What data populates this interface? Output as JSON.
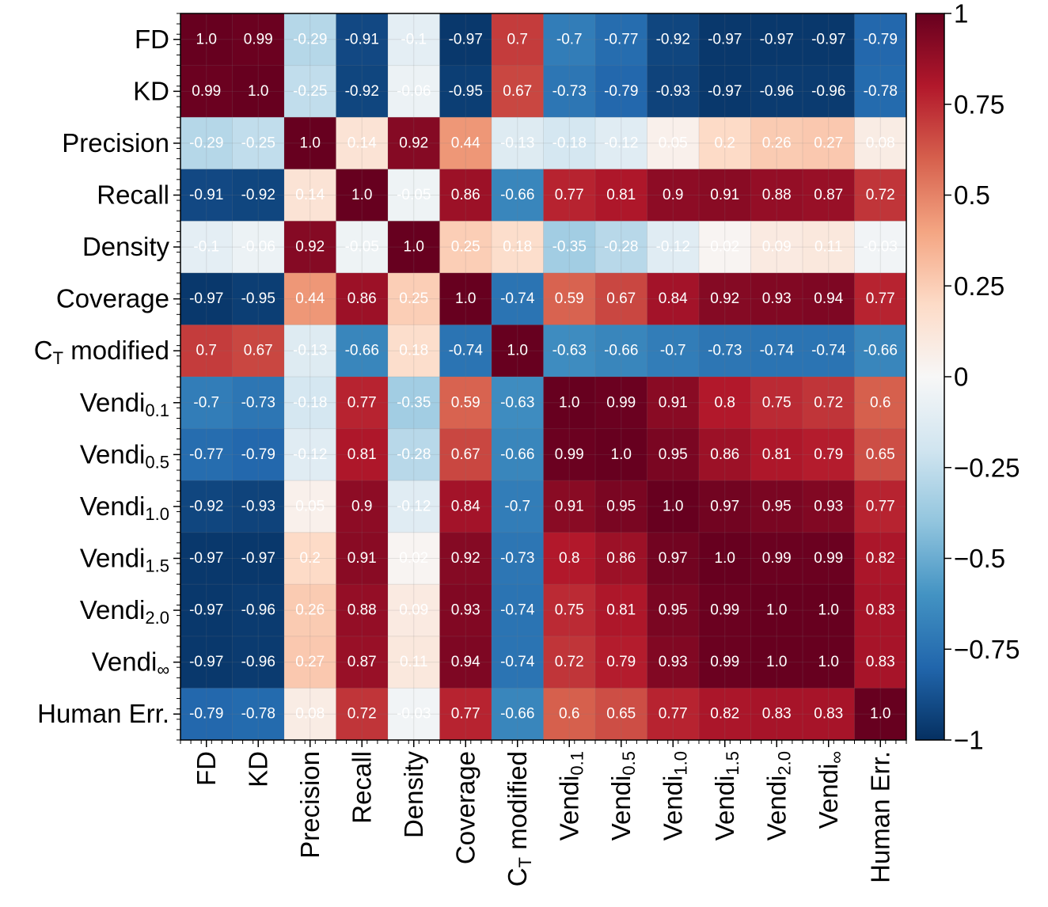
{
  "chart_data": {
    "type": "heatmap",
    "title": "",
    "labels": [
      {
        "base": "FD",
        "sub": ""
      },
      {
        "base": "KD",
        "sub": ""
      },
      {
        "base": "Precision",
        "sub": ""
      },
      {
        "base": "Recall",
        "sub": ""
      },
      {
        "base": "Density",
        "sub": ""
      },
      {
        "base": "Coverage",
        "sub": ""
      },
      {
        "base": "C",
        "sub": "T",
        "suffix": " modified"
      },
      {
        "base": "Vendi",
        "sub": "0.1"
      },
      {
        "base": "Vendi",
        "sub": "0.5"
      },
      {
        "base": "Vendi",
        "sub": "1.0"
      },
      {
        "base": "Vendi",
        "sub": "1.5"
      },
      {
        "base": "Vendi",
        "sub": "2.0"
      },
      {
        "base": "Vendi",
        "sub": "∞"
      },
      {
        "base": "Human Err.",
        "sub": ""
      }
    ],
    "values": [
      [
        1.0,
        0.99,
        -0.29,
        -0.91,
        -0.1,
        -0.97,
        0.7,
        -0.7,
        -0.77,
        -0.92,
        -0.97,
        -0.97,
        -0.97,
        -0.79
      ],
      [
        0.99,
        1.0,
        -0.25,
        -0.92,
        -0.06,
        -0.95,
        0.67,
        -0.73,
        -0.79,
        -0.93,
        -0.97,
        -0.96,
        -0.96,
        -0.78
      ],
      [
        -0.29,
        -0.25,
        1.0,
        0.14,
        0.92,
        0.44,
        -0.13,
        -0.18,
        -0.12,
        0.05,
        0.2,
        0.26,
        0.27,
        0.08
      ],
      [
        -0.91,
        -0.92,
        0.14,
        1.0,
        -0.05,
        0.86,
        -0.66,
        0.77,
        0.81,
        0.9,
        0.91,
        0.88,
        0.87,
        0.72
      ],
      [
        -0.1,
        -0.06,
        0.92,
        -0.05,
        1.0,
        0.25,
        0.18,
        -0.35,
        -0.28,
        -0.12,
        0.02,
        0.09,
        0.11,
        -0.03
      ],
      [
        -0.97,
        -0.95,
        0.44,
        0.86,
        0.25,
        1.0,
        -0.74,
        0.59,
        0.67,
        0.84,
        0.92,
        0.93,
        0.94,
        0.77
      ],
      [
        0.7,
        0.67,
        -0.13,
        -0.66,
        0.18,
        -0.74,
        1.0,
        -0.63,
        -0.66,
        -0.7,
        -0.73,
        -0.74,
        -0.74,
        -0.66
      ],
      [
        -0.7,
        -0.73,
        -0.18,
        0.77,
        -0.35,
        0.59,
        -0.63,
        1.0,
        0.99,
        0.91,
        0.8,
        0.75,
        0.72,
        0.6
      ],
      [
        -0.77,
        -0.79,
        -0.12,
        0.81,
        -0.28,
        0.67,
        -0.66,
        0.99,
        1.0,
        0.95,
        0.86,
        0.81,
        0.79,
        0.65
      ],
      [
        -0.92,
        -0.93,
        0.05,
        0.9,
        -0.12,
        0.84,
        -0.7,
        0.91,
        0.95,
        1.0,
        0.97,
        0.95,
        0.93,
        0.77
      ],
      [
        -0.97,
        -0.97,
        0.2,
        0.91,
        0.02,
        0.92,
        -0.73,
        0.8,
        0.86,
        0.97,
        1.0,
        0.99,
        0.99,
        0.82
      ],
      [
        -0.97,
        -0.96,
        0.26,
        0.88,
        0.09,
        0.93,
        -0.74,
        0.75,
        0.81,
        0.95,
        0.99,
        1.0,
        1.0,
        0.83
      ],
      [
        -0.97,
        -0.96,
        0.27,
        0.87,
        0.11,
        0.94,
        -0.74,
        0.72,
        0.79,
        0.93,
        0.99,
        1.0,
        1.0,
        0.83
      ],
      [
        -0.79,
        -0.78,
        0.08,
        0.72,
        -0.03,
        0.77,
        -0.66,
        0.6,
        0.65,
        0.77,
        0.82,
        0.83,
        0.83,
        1.0
      ]
    ],
    "value_labels": [
      [
        "1.0",
        "0.99",
        "-0.29",
        "-0.91",
        "-0.1",
        "-0.97",
        "0.7",
        "-0.7",
        "-0.77",
        "-0.92",
        "-0.97",
        "-0.97",
        "-0.97",
        "-0.79"
      ],
      [
        "0.99",
        "1.0",
        "-0.25",
        "-0.92",
        "-0.06",
        "-0.95",
        "0.67",
        "-0.73",
        "-0.79",
        "-0.93",
        "-0.97",
        "-0.96",
        "-0.96",
        "-0.78"
      ],
      [
        "-0.29",
        "-0.25",
        "1.0",
        "0.14",
        "0.92",
        "0.44",
        "-0.13",
        "-0.18",
        "-0.12",
        "0.05",
        "0.2",
        "0.26",
        "0.27",
        "0.08"
      ],
      [
        "-0.91",
        "-0.92",
        "0.14",
        "1.0",
        "-0.05",
        "0.86",
        "-0.66",
        "0.77",
        "0.81",
        "0.9",
        "0.91",
        "0.88",
        "0.87",
        "0.72"
      ],
      [
        "-0.1",
        "-0.06",
        "0.92",
        "-0.05",
        "1.0",
        "0.25",
        "0.18",
        "-0.35",
        "-0.28",
        "-0.12",
        "0.02",
        "0.09",
        "0.11",
        "-0.03"
      ],
      [
        "-0.97",
        "-0.95",
        "0.44",
        "0.86",
        "0.25",
        "1.0",
        "-0.74",
        "0.59",
        "0.67",
        "0.84",
        "0.92",
        "0.93",
        "0.94",
        "0.77"
      ],
      [
        "0.7",
        "0.67",
        "-0.13",
        "-0.66",
        "0.18",
        "-0.74",
        "1.0",
        "-0.63",
        "-0.66",
        "-0.7",
        "-0.73",
        "-0.74",
        "-0.74",
        "-0.66"
      ],
      [
        "-0.7",
        "-0.73",
        "-0.18",
        "0.77",
        "-0.35",
        "0.59",
        "-0.63",
        "1.0",
        "0.99",
        "0.91",
        "0.8",
        "0.75",
        "0.72",
        "0.6"
      ],
      [
        "-0.77",
        "-0.79",
        "-0.12",
        "0.81",
        "-0.28",
        "0.67",
        "-0.66",
        "0.99",
        "1.0",
        "0.95",
        "0.86",
        "0.81",
        "0.79",
        "0.65"
      ],
      [
        "-0.92",
        "-0.93",
        "0.05",
        "0.9",
        "-0.12",
        "0.84",
        "-0.7",
        "0.91",
        "0.95",
        "1.0",
        "0.97",
        "0.95",
        "0.93",
        "0.77"
      ],
      [
        "-0.97",
        "-0.97",
        "0.2",
        "0.91",
        "0.02",
        "0.92",
        "-0.73",
        "0.8",
        "0.86",
        "0.97",
        "1.0",
        "0.99",
        "0.99",
        "0.82"
      ],
      [
        "-0.97",
        "-0.96",
        "0.26",
        "0.88",
        "0.09",
        "0.93",
        "-0.74",
        "0.75",
        "0.81",
        "0.95",
        "0.99",
        "1.0",
        "1.0",
        "0.83"
      ],
      [
        "-0.97",
        "-0.96",
        "0.27",
        "0.87",
        "0.11",
        "0.94",
        "-0.74",
        "0.72",
        "0.79",
        "0.93",
        "0.99",
        "1.0",
        "1.0",
        "0.83"
      ],
      [
        "-0.79",
        "-0.78",
        "0.08",
        "0.72",
        "-0.03",
        "0.77",
        "-0.66",
        "0.6",
        "0.65",
        "0.77",
        "0.82",
        "0.83",
        "0.83",
        "1.0"
      ]
    ],
    "colormap": "RdBu_r",
    "vmin": -1,
    "vmax": 1,
    "colorbar": {
      "ticks": [
        1,
        0.75,
        0.5,
        0.25,
        0,
        -0.25,
        -0.5,
        -0.75,
        -1
      ],
      "tick_labels": [
        "1",
        "0.75",
        "0.5",
        "0.25",
        "0",
        "−0.25",
        "−0.5",
        "−0.75",
        "−1"
      ],
      "placement": "right"
    },
    "xlabel": "",
    "ylabel": "",
    "grid": true
  }
}
